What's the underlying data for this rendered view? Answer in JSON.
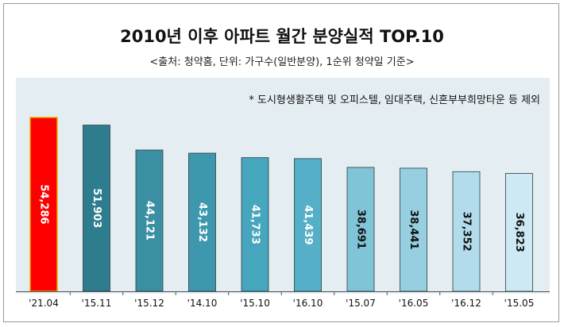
{
  "chart_data": {
    "type": "bar",
    "title": "2010년 이후 아파트 월간 분양실적 TOP.10",
    "subtitle": "<출처: 청약홈, 단위: 가구수(일반분양), 1순위 청약일 기준>",
    "footnote": "* 도시형생활주택 및 오피스텔, 임대주택, 신혼부부희망타운 등 제외",
    "categories": [
      "'21.04",
      "'15.11",
      "'15.12",
      "'14.10",
      "'15.10",
      "'16.10",
      "'15.07",
      "'16.05",
      "'16.12",
      "'15.05"
    ],
    "values": [
      54286,
      51903,
      44121,
      43132,
      41733,
      41439,
      38691,
      38441,
      37352,
      36823
    ],
    "value_labels": [
      "54,286",
      "51,903",
      "44,121",
      "43,132",
      "41,733",
      "41,439",
      "38,691",
      "38,441",
      "37,352",
      "36,823"
    ],
    "colors": [
      "#ff0000",
      "#2d7d8f",
      "#3a8fa3",
      "#3d98ae",
      "#45a6bd",
      "#55afc6",
      "#7fc4d7",
      "#96cfdf",
      "#b2dceb",
      "#cde9f3"
    ],
    "label_colors": [
      "#ffffff",
      "#ffffff",
      "#ffffff",
      "#ffffff",
      "#ffffff",
      "#ffffff",
      "#111111",
      "#111111",
      "#111111",
      "#111111"
    ],
    "ylim": [
      0,
      54286
    ],
    "grid": false,
    "legend": "none"
  }
}
